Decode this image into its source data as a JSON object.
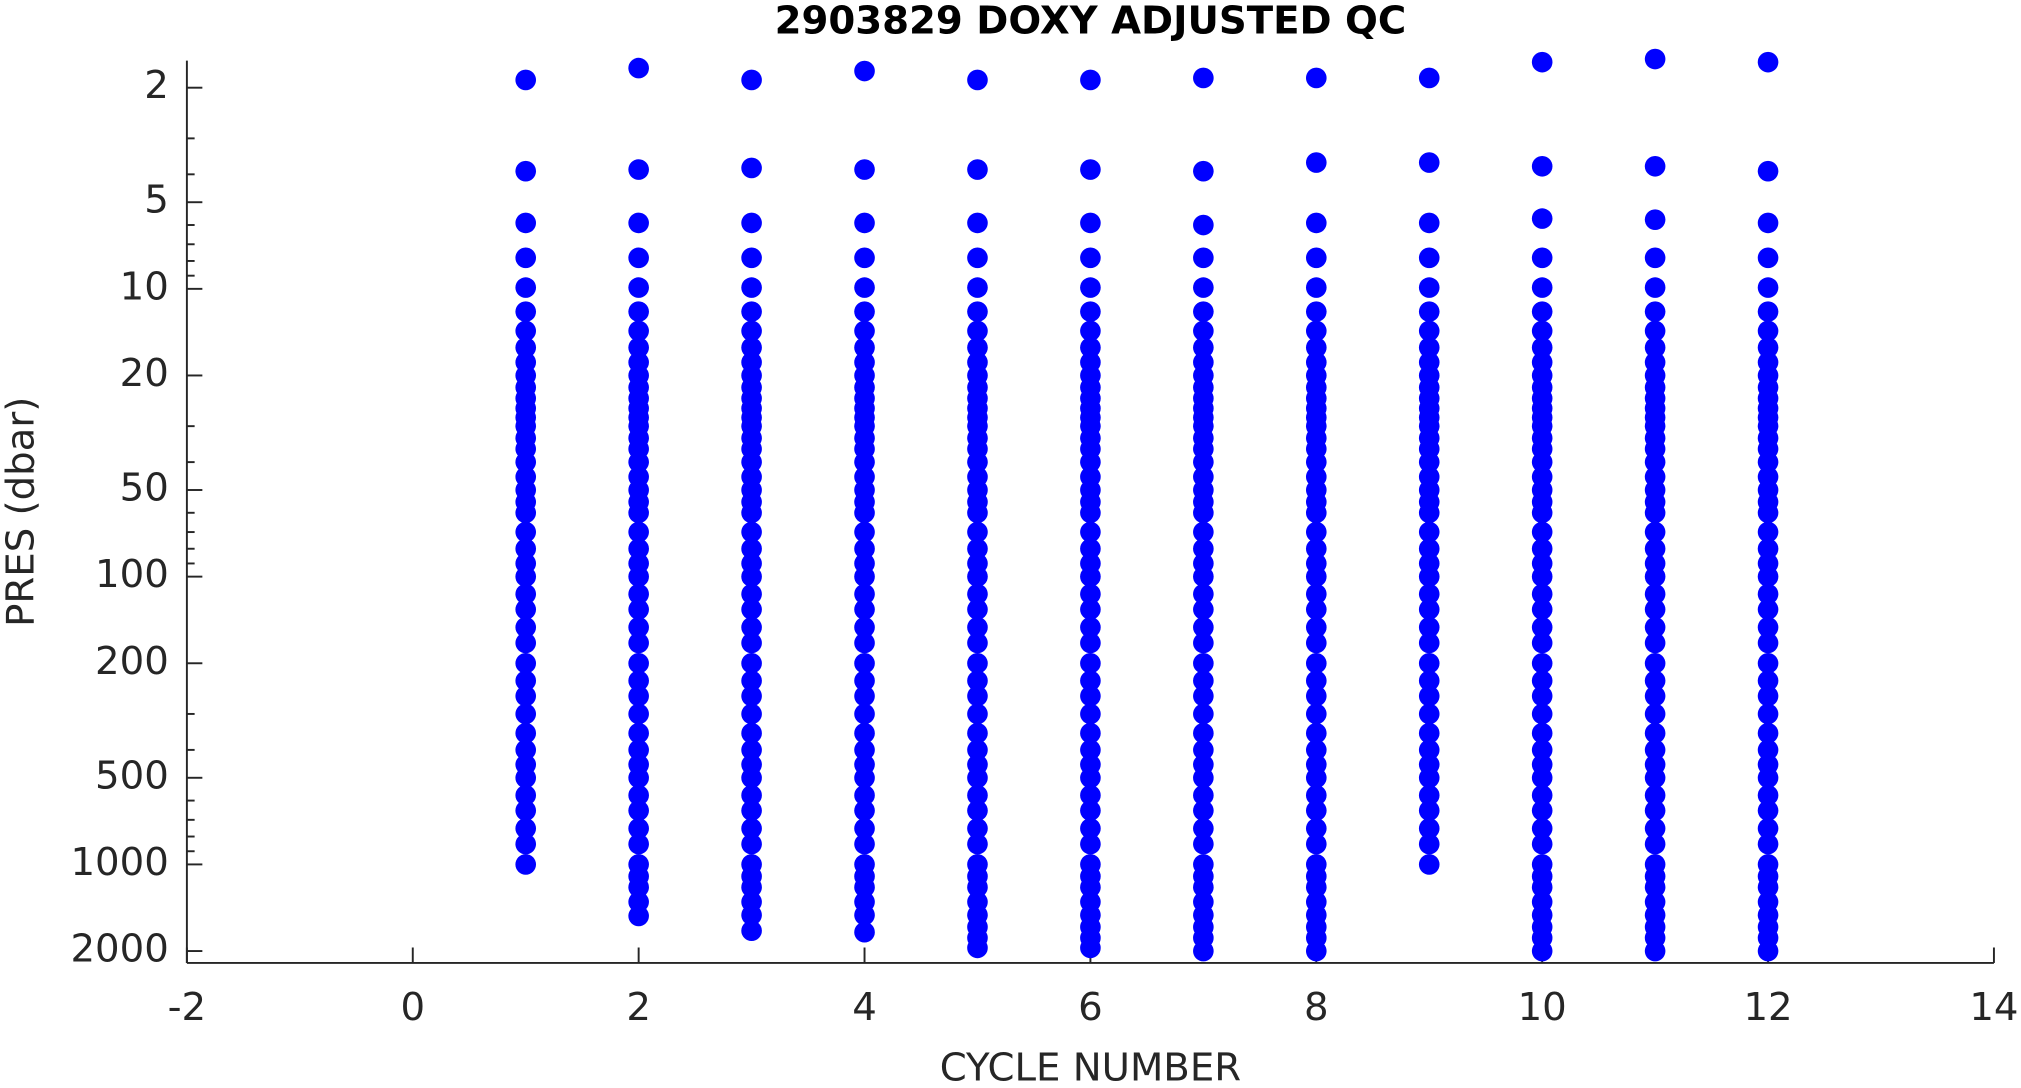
{
  "chart_data": {
    "type": "scatter",
    "title": "2903829  DOXY ADJUSTED QC",
    "xlabel": "CYCLE NUMBER",
    "ylabel": "PRES (dbar)",
    "color": "#0000ff",
    "ylog": true,
    "yreverse": true,
    "xlim": [
      -2,
      14
    ],
    "xticks": [
      -2,
      0,
      2,
      4,
      6,
      8,
      10,
      12,
      14
    ],
    "ylim": [
      1.61,
      2200
    ],
    "yticks": [
      2,
      5,
      10,
      20,
      50,
      100,
      200,
      500,
      1000,
      2000
    ],
    "yminorticks": [
      3,
      4,
      6,
      7,
      8,
      9,
      30,
      40,
      60,
      70,
      80,
      90,
      300,
      400,
      600,
      700,
      800,
      900
    ],
    "profiles": [
      {
        "cycle": 1,
        "pres": [
          1.88,
          3.9,
          5.9,
          7.8,
          9.9,
          12,
          14,
          16,
          18,
          20,
          22,
          24,
          26,
          28,
          30,
          33,
          36,
          40,
          45,
          50,
          55,
          60,
          70,
          80,
          90,
          100,
          115,
          130,
          150,
          170,
          200,
          230,
          260,
          300,
          350,
          400,
          450,
          500,
          575,
          650,
          750,
          850,
          1000
        ]
      },
      {
        "cycle": 2,
        "pres": [
          1.71,
          3.85,
          5.9,
          7.8,
          9.9,
          12,
          14,
          16,
          18,
          20,
          22,
          24,
          26,
          28,
          30,
          33,
          36,
          40,
          45,
          50,
          55,
          60,
          70,
          80,
          90,
          100,
          115,
          130,
          150,
          170,
          200,
          230,
          260,
          300,
          350,
          400,
          450,
          500,
          575,
          650,
          750,
          850,
          1000,
          1100,
          1200,
          1350,
          1510
        ]
      },
      {
        "cycle": 3,
        "pres": [
          1.88,
          3.8,
          5.9,
          7.8,
          9.9,
          12,
          14,
          16,
          18,
          20,
          22,
          24,
          26,
          28,
          30,
          33,
          36,
          40,
          45,
          50,
          55,
          60,
          70,
          80,
          90,
          100,
          115,
          130,
          150,
          170,
          200,
          230,
          260,
          300,
          350,
          400,
          450,
          500,
          575,
          650,
          750,
          850,
          1000,
          1100,
          1200,
          1350,
          1500,
          1700
        ]
      },
      {
        "cycle": 4,
        "pres": [
          1.75,
          3.85,
          5.9,
          7.8,
          9.9,
          12,
          14,
          16,
          18,
          20,
          22,
          24,
          26,
          28,
          30,
          33,
          36,
          40,
          45,
          50,
          55,
          60,
          70,
          80,
          90,
          100,
          115,
          130,
          150,
          170,
          200,
          230,
          260,
          300,
          350,
          400,
          450,
          500,
          575,
          650,
          750,
          850,
          1000,
          1100,
          1200,
          1350,
          1500,
          1720
        ]
      },
      {
        "cycle": 5,
        "pres": [
          1.88,
          3.85,
          5.9,
          7.8,
          9.9,
          12,
          14,
          16,
          18,
          20,
          22,
          24,
          26,
          28,
          30,
          33,
          36,
          40,
          45,
          50,
          55,
          60,
          70,
          80,
          90,
          100,
          115,
          130,
          150,
          170,
          200,
          230,
          260,
          300,
          350,
          400,
          450,
          500,
          575,
          650,
          750,
          850,
          1000,
          1100,
          1200,
          1350,
          1500,
          1650,
          1800,
          1950
        ]
      },
      {
        "cycle": 6,
        "pres": [
          1.88,
          3.85,
          5.9,
          7.8,
          9.9,
          12,
          14,
          16,
          18,
          20,
          22,
          24,
          26,
          28,
          30,
          33,
          36,
          40,
          45,
          50,
          55,
          60,
          70,
          80,
          90,
          100,
          115,
          130,
          150,
          170,
          200,
          230,
          260,
          300,
          350,
          400,
          450,
          500,
          575,
          650,
          750,
          850,
          1000,
          1100,
          1200,
          1350,
          1500,
          1650,
          1800,
          1950
        ]
      },
      {
        "cycle": 7,
        "pres": [
          1.85,
          3.9,
          6.0,
          7.8,
          9.9,
          12,
          14,
          16,
          18,
          20,
          22,
          24,
          26,
          28,
          30,
          33,
          36,
          40,
          45,
          50,
          55,
          60,
          70,
          80,
          90,
          100,
          115,
          130,
          150,
          170,
          200,
          230,
          260,
          300,
          350,
          400,
          450,
          500,
          575,
          650,
          750,
          850,
          1000,
          1100,
          1200,
          1350,
          1500,
          1650,
          1800,
          2000
        ]
      },
      {
        "cycle": 8,
        "pres": [
          1.85,
          3.64,
          5.9,
          7.8,
          9.9,
          12,
          14,
          16,
          18,
          20,
          22,
          24,
          26,
          28,
          30,
          33,
          36,
          40,
          45,
          50,
          55,
          60,
          70,
          80,
          90,
          100,
          115,
          130,
          150,
          170,
          200,
          230,
          260,
          300,
          350,
          400,
          450,
          500,
          575,
          650,
          750,
          850,
          1000,
          1100,
          1200,
          1350,
          1500,
          1650,
          1800,
          2000
        ]
      },
      {
        "cycle": 9,
        "pres": [
          1.85,
          3.64,
          5.9,
          7.8,
          9.9,
          12,
          14,
          16,
          18,
          20,
          22,
          24,
          26,
          28,
          30,
          33,
          36,
          40,
          45,
          50,
          55,
          60,
          70,
          80,
          90,
          100,
          115,
          130,
          150,
          170,
          200,
          230,
          260,
          300,
          350,
          400,
          450,
          500,
          575,
          650,
          750,
          850,
          1000
        ]
      },
      {
        "cycle": 10,
        "pres": [
          1.63,
          3.75,
          5.7,
          7.8,
          9.9,
          12,
          14,
          16,
          18,
          20,
          22,
          24,
          26,
          28,
          30,
          33,
          36,
          40,
          45,
          50,
          55,
          60,
          70,
          80,
          90,
          100,
          115,
          130,
          150,
          170,
          200,
          230,
          260,
          300,
          350,
          400,
          450,
          500,
          575,
          650,
          750,
          850,
          1000,
          1100,
          1200,
          1350,
          1500,
          1650,
          1800,
          2000
        ]
      },
      {
        "cycle": 11,
        "pres": [
          1.59,
          3.75,
          5.75,
          7.8,
          9.9,
          12,
          14,
          16,
          18,
          20,
          22,
          24,
          26,
          28,
          30,
          33,
          36,
          40,
          45,
          50,
          55,
          60,
          70,
          80,
          90,
          100,
          115,
          130,
          150,
          170,
          200,
          230,
          260,
          300,
          350,
          400,
          450,
          500,
          575,
          650,
          750,
          850,
          1000,
          1100,
          1200,
          1350,
          1500,
          1650,
          1800,
          2000
        ]
      },
      {
        "cycle": 12,
        "pres": [
          1.63,
          3.9,
          5.9,
          7.8,
          9.9,
          12,
          14,
          16,
          18,
          20,
          22,
          24,
          26,
          28,
          30,
          33,
          36,
          40,
          45,
          50,
          55,
          60,
          70,
          80,
          90,
          100,
          115,
          130,
          150,
          170,
          200,
          230,
          260,
          300,
          350,
          400,
          450,
          500,
          575,
          650,
          750,
          850,
          1000,
          1100,
          1200,
          1350,
          1500,
          1650,
          1800,
          2000
        ]
      }
    ]
  }
}
